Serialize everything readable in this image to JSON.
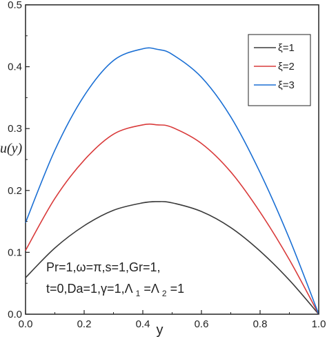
{
  "chart_data": {
    "type": "line",
    "xlabel": "y",
    "ylabel": "u(y)",
    "xlim": [
      0.0,
      1.0
    ],
    "ylim": [
      0.0,
      0.5
    ],
    "xticks": [
      "0.0",
      "0.2",
      "0.4",
      "0.6",
      "0.8",
      "1.0"
    ],
    "yticks": [
      "0.0",
      "0.1",
      "0.2",
      "0.3",
      "0.4",
      "0.5"
    ],
    "grid": false,
    "legend_position": "top-right",
    "x": [
      0.0,
      0.1,
      0.2,
      0.3,
      0.4,
      0.45,
      0.5,
      0.6,
      0.7,
      0.8,
      0.9,
      1.0
    ],
    "series": [
      {
        "name": "ξ=1",
        "color": "#3a3a3a",
        "values": [
          0.059,
          0.107,
          0.143,
          0.168,
          0.18,
          0.182,
          0.18,
          0.166,
          0.14,
          0.102,
          0.055,
          0.0
        ]
      },
      {
        "name": "ξ=2",
        "color": "#d93a3a",
        "values": [
          0.103,
          0.187,
          0.249,
          0.291,
          0.306,
          0.306,
          0.302,
          0.276,
          0.23,
          0.165,
          0.088,
          0.0
        ]
      },
      {
        "name": "ξ=3",
        "color": "#1a6fd4",
        "values": [
          0.148,
          0.265,
          0.353,
          0.41,
          0.429,
          0.428,
          0.42,
          0.383,
          0.319,
          0.229,
          0.122,
          0.0
        ]
      }
    ],
    "annotation": {
      "line1": "Pr=1,ω=π,s=1,Gr=1,",
      "line2_parts": [
        "t=0,Da=1,γ=1,Λ",
        "1",
        "=Λ",
        "2",
        "=1"
      ]
    }
  }
}
